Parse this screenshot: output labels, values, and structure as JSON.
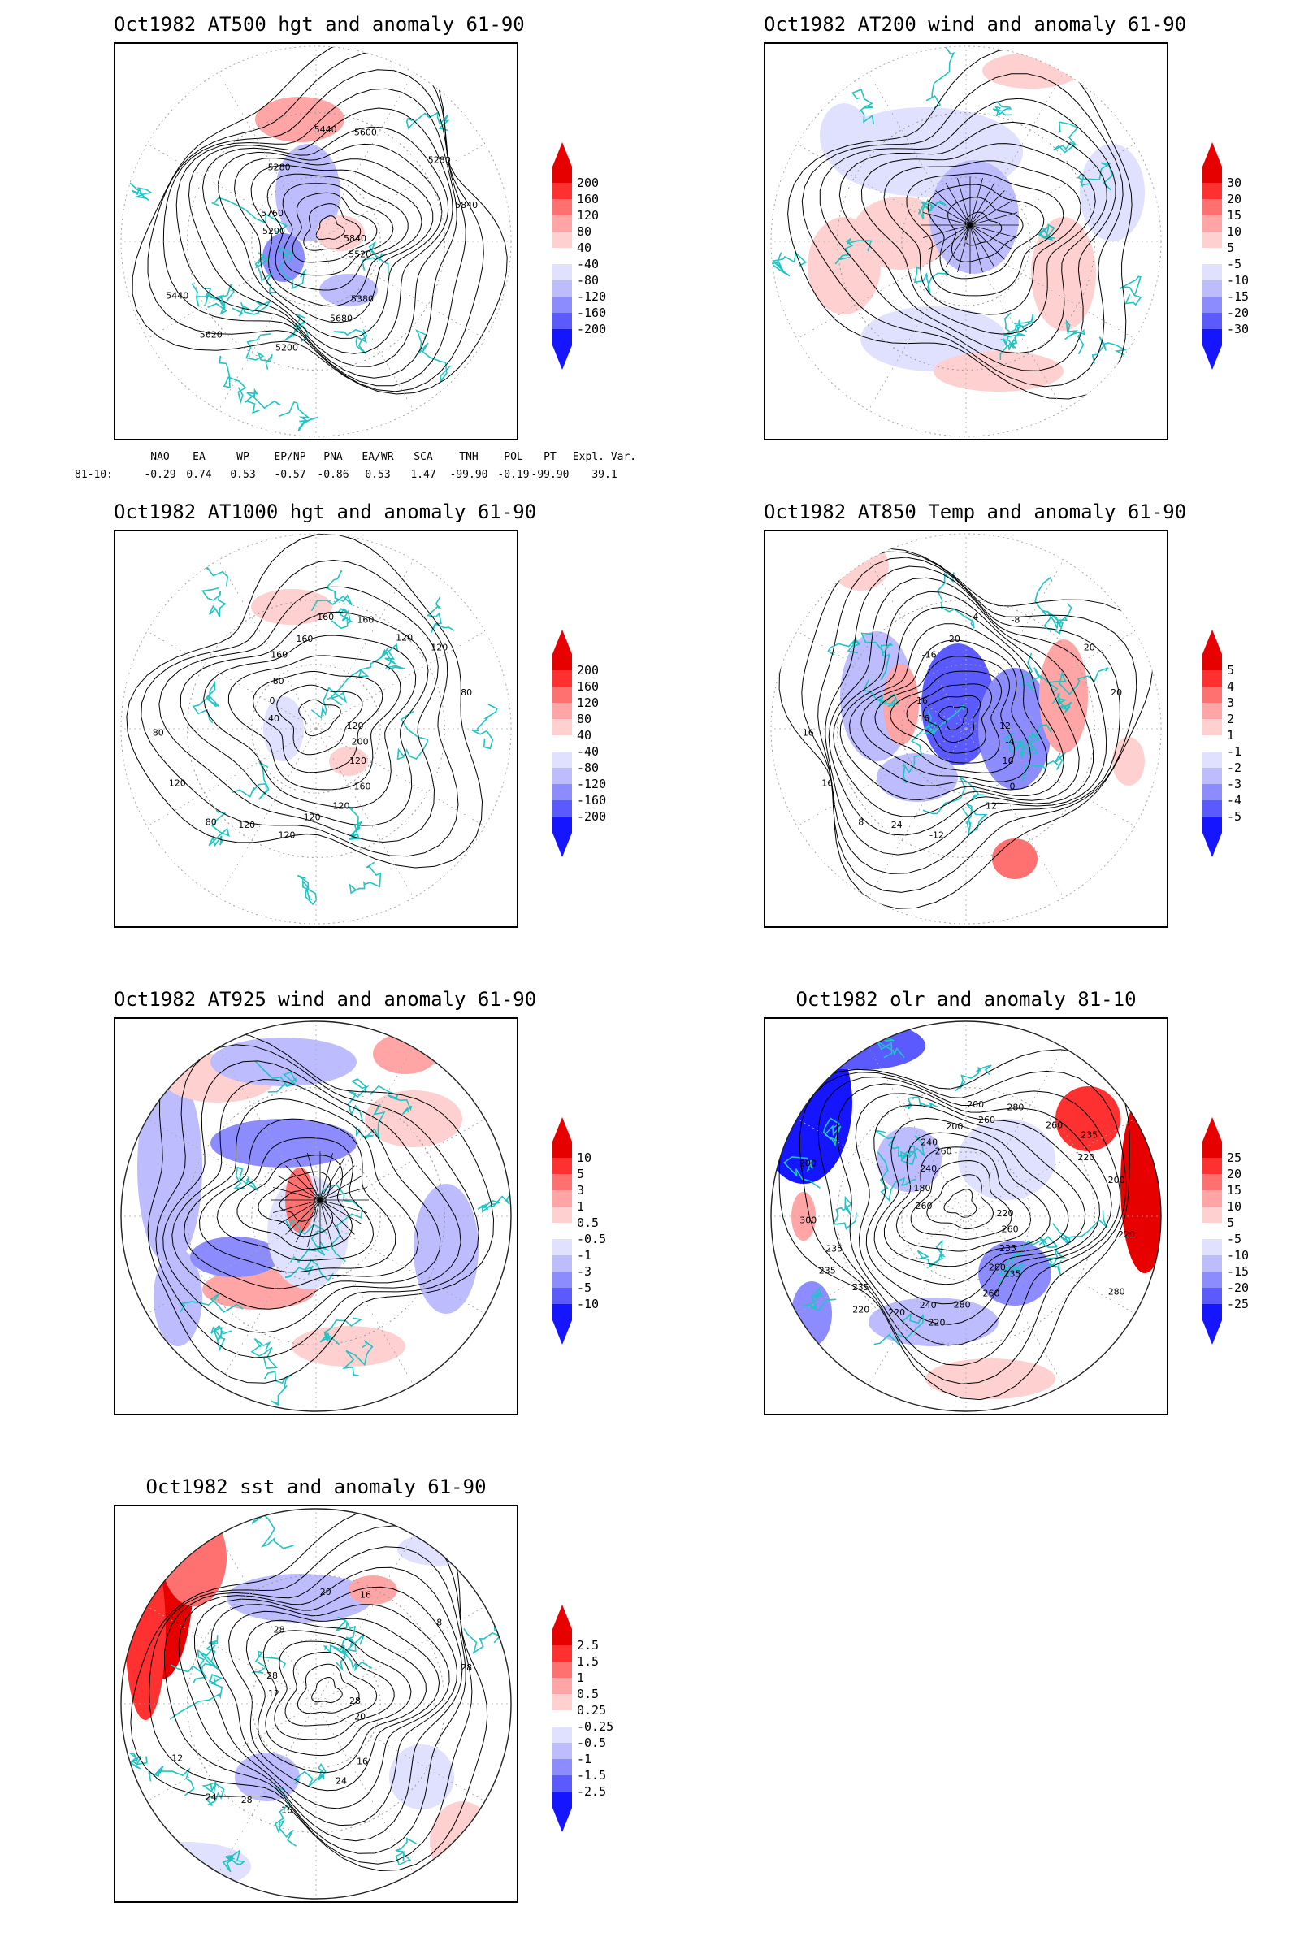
{
  "colors": {
    "coast": "#22c3c3",
    "contour": "#000000",
    "red1": "#ffd0d0",
    "red2": "#ffa5a5",
    "red3": "#ff7070",
    "red4": "#ff3030",
    "red5": "#e60000",
    "blue1": "#e0e0ff",
    "blue2": "#bcbcff",
    "blue3": "#8c8cff",
    "blue4": "#5a5aff",
    "blue5": "#1515ff"
  },
  "panels": [
    {
      "id": "z500",
      "title": "Oct1982 AT500 hgt and anomaly 61-90",
      "colorbar": [
        "200",
        "160",
        "120",
        "80",
        "40",
        "-40",
        "-80",
        "-120",
        "-160",
        "-200"
      ],
      "contour_labels": [
        "5840",
        "5620",
        "5440",
        "5380",
        "5200",
        "5280",
        "5200",
        "5280",
        "5520",
        "5440",
        "5600",
        "5680",
        "5760",
        "5840"
      ]
    },
    {
      "id": "u200",
      "title": "Oct1982 AT200 wind and anomaly 61-90",
      "colorbar": [
        "30",
        "20",
        "15",
        "10",
        "5",
        "-5",
        "-10",
        "-15",
        "-20",
        "-30"
      ],
      "contour_labels": []
    },
    {
      "id": "z1000",
      "title": "Oct1982 AT1000 hgt and anomaly 61-90",
      "colorbar": [
        "200",
        "160",
        "120",
        "80",
        "40",
        "-40",
        "-80",
        "-120",
        "-160",
        "-200"
      ],
      "contour_labels": [
        "120",
        "80",
        "160",
        "160",
        "40",
        "120",
        "120",
        "160",
        "200",
        "120",
        "160",
        "120",
        "0",
        "80",
        "120",
        "160",
        "120",
        "80",
        "120",
        "120",
        "80"
      ]
    },
    {
      "id": "t850",
      "title": "Oct1982 AT850 Temp and anomaly 61-90",
      "colorbar": [
        "5",
        "4",
        "3",
        "2",
        "1",
        "-1",
        "-2",
        "-3",
        "-4",
        "-5"
      ],
      "contour_labels": [
        "12",
        "8",
        "4",
        "0",
        "16",
        "20",
        "-12",
        "-16",
        "-4",
        "16",
        "-8",
        "12",
        "16",
        "20",
        "24",
        "20",
        "16",
        "16"
      ]
    },
    {
      "id": "u925",
      "title": "Oct1982 AT925 wind and anomaly 61-90",
      "colorbar": [
        "10",
        "5",
        "3",
        "1",
        "0.5",
        "-0.5",
        "-1",
        "-3",
        "-5",
        "-10"
      ],
      "contour_labels": []
    },
    {
      "id": "olr",
      "title": "Oct1982 olr and anomaly 81-10",
      "colorbar": [
        "25",
        "20",
        "15",
        "10",
        "5",
        "-5",
        "-10",
        "-15",
        "-20",
        "-25"
      ],
      "contour_labels": [
        "220",
        "220",
        "200",
        "235",
        "260",
        "235",
        "220",
        "240",
        "260",
        "235",
        "280",
        "260",
        "180",
        "200",
        "220",
        "200",
        "235",
        "300",
        "260",
        "280",
        "240",
        "220",
        "235",
        "260",
        "280",
        "200",
        "220",
        "240",
        "260",
        "280",
        "235"
      ]
    },
    {
      "id": "sst",
      "title": "Oct1982 sst and anomaly 61-90",
      "colorbar": [
        "2.5",
        "1.5",
        "1",
        "0.5",
        "0.25",
        "-0.25",
        "-0.5",
        "-1",
        "-1.5",
        "-2.5"
      ],
      "contour_labels": [
        "28",
        "24",
        "20",
        "16",
        "12",
        "8",
        "16",
        "28",
        "20",
        "12",
        "16",
        "24",
        "28",
        "28",
        "28"
      ]
    }
  ],
  "teleconnections": {
    "row_label": "81-10:",
    "headers": [
      "NAO",
      "EA",
      "WP",
      "EP/NP",
      "PNA",
      "EA/WR",
      "SCA",
      "TNH",
      "POL",
      "PT",
      "Expl. Var."
    ],
    "values": [
      "-0.29",
      "0.74",
      "0.53",
      "-0.57",
      "-0.86",
      "0.53",
      "1.47",
      "-99.90",
      "-0.19",
      "-99.90",
      "39.1"
    ]
  }
}
